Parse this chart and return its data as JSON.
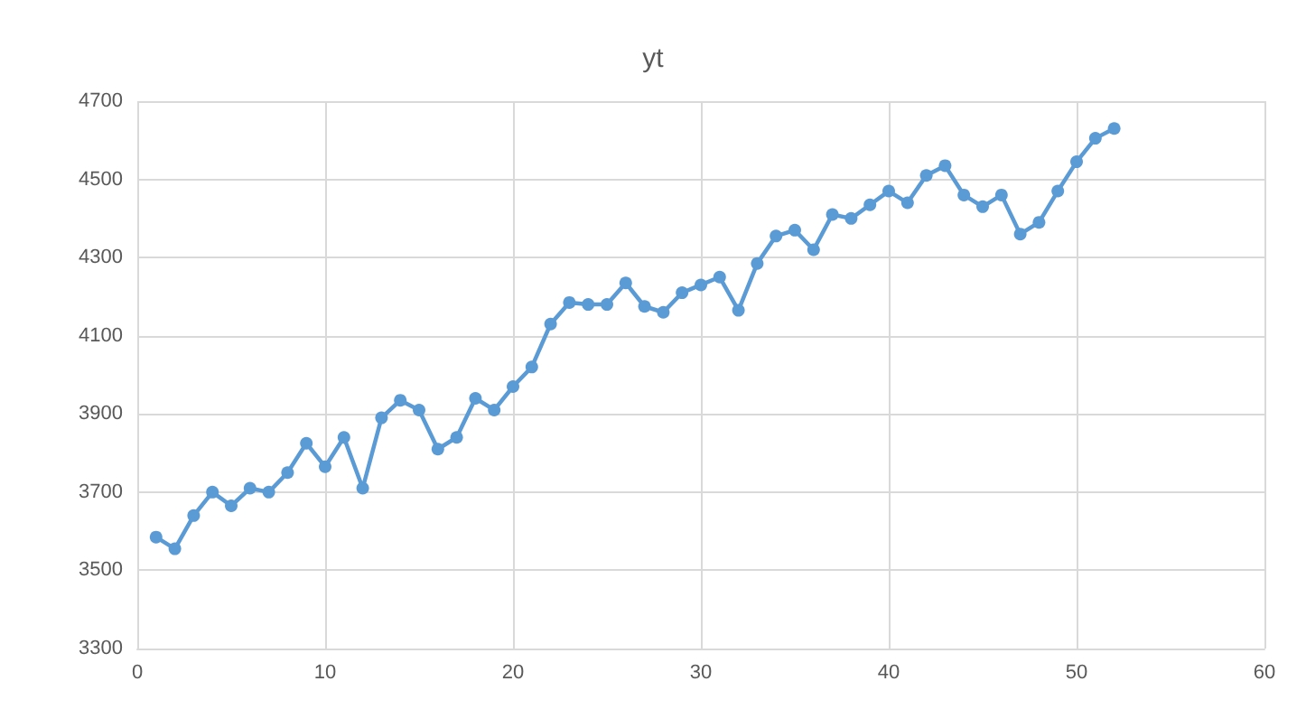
{
  "chart_data": {
    "type": "line",
    "title": "yt",
    "x": [
      1,
      2,
      3,
      4,
      5,
      6,
      7,
      8,
      9,
      10,
      11,
      12,
      13,
      14,
      15,
      16,
      17,
      18,
      19,
      20,
      21,
      22,
      23,
      24,
      25,
      26,
      27,
      28,
      29,
      30,
      31,
      32,
      33,
      34,
      35,
      36,
      37,
      38,
      39,
      40,
      41,
      42,
      43,
      44,
      45,
      46,
      47,
      48,
      49,
      50,
      51,
      52
    ],
    "series": [
      {
        "color": "#5b9bd5",
        "values": [
          3585,
          3555,
          3640,
          3700,
          3665,
          3710,
          3700,
          3750,
          3825,
          3765,
          3840,
          3710,
          3890,
          3935,
          3910,
          3810,
          3840,
          3940,
          3910,
          3970,
          4020,
          4130,
          4185,
          4180,
          4180,
          4235,
          4175,
          4160,
          4210,
          4230,
          4250,
          4165,
          4285,
          4355,
          4370,
          4320,
          4410,
          4400,
          4435,
          4470,
          4440,
          4510,
          4535,
          4460,
          4430,
          4460,
          4360,
          4390,
          4470,
          4545,
          4605,
          4630
        ]
      }
    ],
    "xlim": [
      0,
      60
    ],
    "xticks": [
      0,
      10,
      20,
      30,
      40,
      50,
      60
    ],
    "ylim": [
      3300,
      4700
    ],
    "yticks": [
      3300,
      3500,
      3700,
      3900,
      4100,
      4300,
      4500,
      4700
    ],
    "grid": true,
    "marker": "circle",
    "line_style": "solid"
  }
}
